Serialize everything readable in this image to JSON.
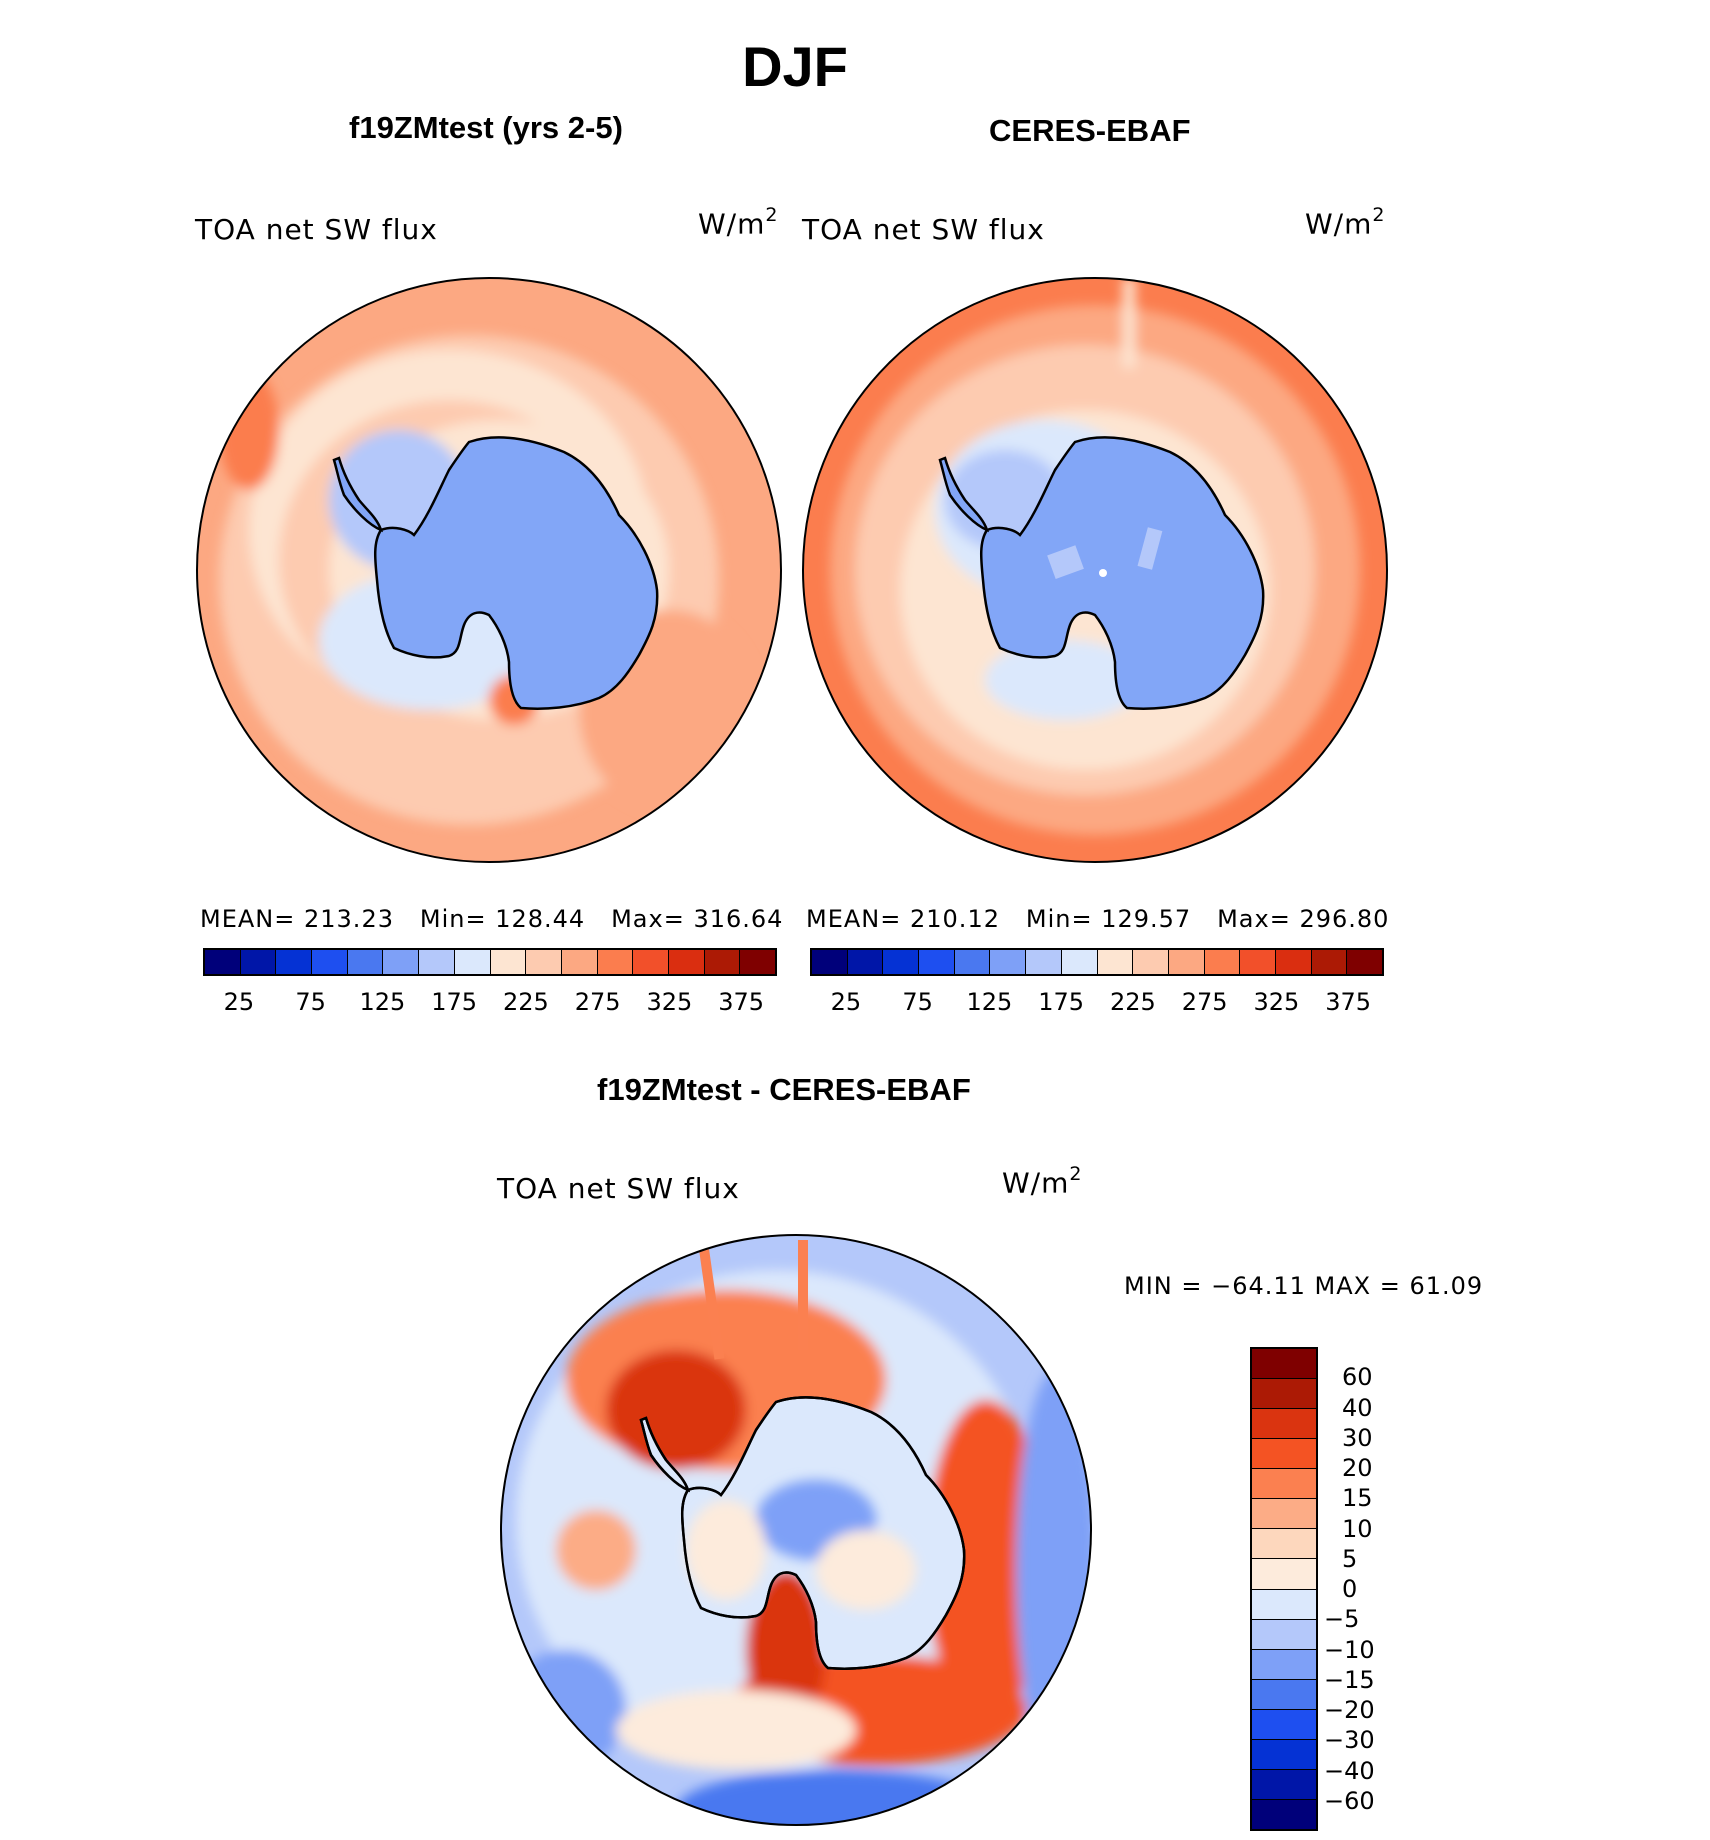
{
  "figure": {
    "title": "DJF",
    "panel_a_title": "f19ZMtest (yrs 2-5)",
    "panel_b_title": "CERES-EBAF",
    "panel_c_title": "f19ZMtest - CERES-EBAF"
  },
  "colors": {
    "sequential": [
      "#00007a",
      "#0016a8",
      "#0532d4",
      "#1e4ff0",
      "#4a78f0",
      "#7ea0f7",
      "#b4c8fa",
      "#dbe8fc",
      "#fde5d2",
      "#fdcbb0",
      "#fca882",
      "#fb7d4e",
      "#f2502a",
      "#da2e10",
      "#ac1a05",
      "#7f0000"
    ],
    "diverging": [
      "#7f0000",
      "#ac1a05",
      "#da3410",
      "#f45323",
      "#fb8050",
      "#fcac86",
      "#fdd7bd",
      "#fdebdc",
      "#dbe8fc",
      "#b4c8fa",
      "#7ea0f7",
      "#4a78f0",
      "#1e4ff0",
      "#0532d4",
      "#0016a8",
      "#00007a"
    ],
    "land_blue": "#82a6f7",
    "ocean_orange": "#fca882"
  },
  "chart_data": [
    {
      "type": "heatmap",
      "projection": "south-polar-stereographic",
      "panel_title": "f19ZMtest (yrs 2-5)",
      "left_label": "TOA net SW flux",
      "units": "W/m",
      "units_exponent": "2",
      "stats": {
        "mean": "213.23",
        "min": "128.44",
        "max": "316.64"
      },
      "stats_labels": {
        "mean": "MEAN=",
        "min": "Min=",
        "max": "Max="
      },
      "colorbar_levels": [
        25,
        50,
        75,
        100,
        125,
        150,
        175,
        200,
        225,
        250,
        275,
        300,
        325,
        350,
        375
      ],
      "colorbar_tick_labels": [
        "25",
        "75",
        "125",
        "175",
        "225",
        "275",
        "325",
        "375"
      ]
    },
    {
      "type": "heatmap",
      "projection": "south-polar-stereographic",
      "panel_title": "CERES-EBAF",
      "left_label": "TOA net SW flux",
      "units": "W/m",
      "units_exponent": "2",
      "stats": {
        "mean": "210.12",
        "min": "129.57",
        "max": "296.80"
      },
      "stats_labels": {
        "mean": "MEAN=",
        "min": "Min=",
        "max": "Max="
      },
      "colorbar_levels": [
        25,
        50,
        75,
        100,
        125,
        150,
        175,
        200,
        225,
        250,
        275,
        300,
        325,
        350,
        375
      ],
      "colorbar_tick_labels": [
        "25",
        "75",
        "125",
        "175",
        "225",
        "275",
        "325",
        "375"
      ]
    },
    {
      "type": "heatmap",
      "projection": "south-polar-stereographic",
      "panel_title": "f19ZMtest - CERES-EBAF",
      "left_label": "TOA net SW flux",
      "units": "W/m",
      "units_exponent": "2",
      "stats_text": "MIN = −64.11 MAX =  61.09",
      "stats": {
        "min": -64.11,
        "max": 61.09
      },
      "colorbar_levels": [
        60,
        40,
        30,
        20,
        15,
        10,
        5,
        0,
        -5,
        -10,
        -15,
        -20,
        -30,
        -40,
        -60
      ],
      "colorbar_tick_labels": [
        "60",
        "40",
        "30",
        "20",
        "15",
        "10",
        "5",
        "0",
        "−5",
        "−10",
        "−15",
        "−20",
        "−30",
        "−40",
        "−60"
      ]
    }
  ]
}
